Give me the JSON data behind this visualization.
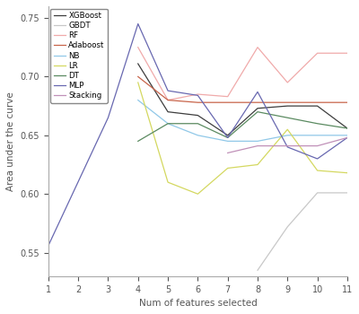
{
  "x": [
    1,
    2,
    3,
    4,
    5,
    6,
    7,
    8,
    9,
    10,
    11
  ],
  "series": {
    "XGBoost": {
      "color": "#3d3d3d",
      "values": [
        null,
        null,
        null,
        0.711,
        0.67,
        0.667,
        0.65,
        0.673,
        0.675,
        0.675,
        0.656
      ]
    },
    "GBDT": {
      "color": "#c8c8c8",
      "values": [
        null,
        null,
        null,
        null,
        null,
        null,
        null,
        0.535,
        0.572,
        0.601,
        0.601
      ]
    },
    "RF": {
      "color": "#f0aaaa",
      "values": [
        null,
        null,
        null,
        0.725,
        0.68,
        0.685,
        0.683,
        0.725,
        0.695,
        0.72,
        0.72
      ]
    },
    "Adaboost": {
      "color": "#c8644a",
      "values": [
        null,
        null,
        null,
        0.7,
        0.68,
        0.678,
        0.678,
        0.678,
        0.678,
        0.678,
        0.678
      ]
    },
    "NB": {
      "color": "#90c8e8",
      "values": [
        null,
        null,
        null,
        0.68,
        0.66,
        0.65,
        0.645,
        0.645,
        0.65,
        0.65,
        0.65
      ]
    },
    "LR": {
      "color": "#d4d860",
      "values": [
        null,
        null,
        null,
        0.695,
        0.61,
        0.6,
        0.622,
        0.625,
        0.655,
        0.62,
        0.618
      ]
    },
    "DT": {
      "color": "#5a8a60",
      "values": [
        null,
        null,
        null,
        0.645,
        0.66,
        0.66,
        0.648,
        0.67,
        0.665,
        0.66,
        0.656
      ]
    },
    "MLP": {
      "color": "#6868b0",
      "values": [
        0.556,
        null,
        0.665,
        0.745,
        0.688,
        0.684,
        0.648,
        0.687,
        0.64,
        0.63,
        0.648
      ]
    },
    "Stacking": {
      "color": "#c090b8",
      "values": [
        null,
        null,
        null,
        null,
        null,
        null,
        0.635,
        0.641,
        0.641,
        0.641,
        0.648
      ]
    }
  },
  "xlabel": "Num of features selected",
  "ylabel": "Area under the curve",
  "xlim": [
    1,
    11
  ],
  "ylim": [
    0.53,
    0.76
  ],
  "yticks": [
    0.55,
    0.6,
    0.65,
    0.7,
    0.75
  ],
  "xticks": [
    1,
    2,
    3,
    4,
    5,
    6,
    7,
    8,
    9,
    10,
    11
  ],
  "legend_order": [
    "XGBoost",
    "GBDT",
    "RF",
    "Adaboost",
    "NB",
    "LR",
    "DT",
    "MLP",
    "Stacking"
  ],
  "linewidth": 0.9
}
